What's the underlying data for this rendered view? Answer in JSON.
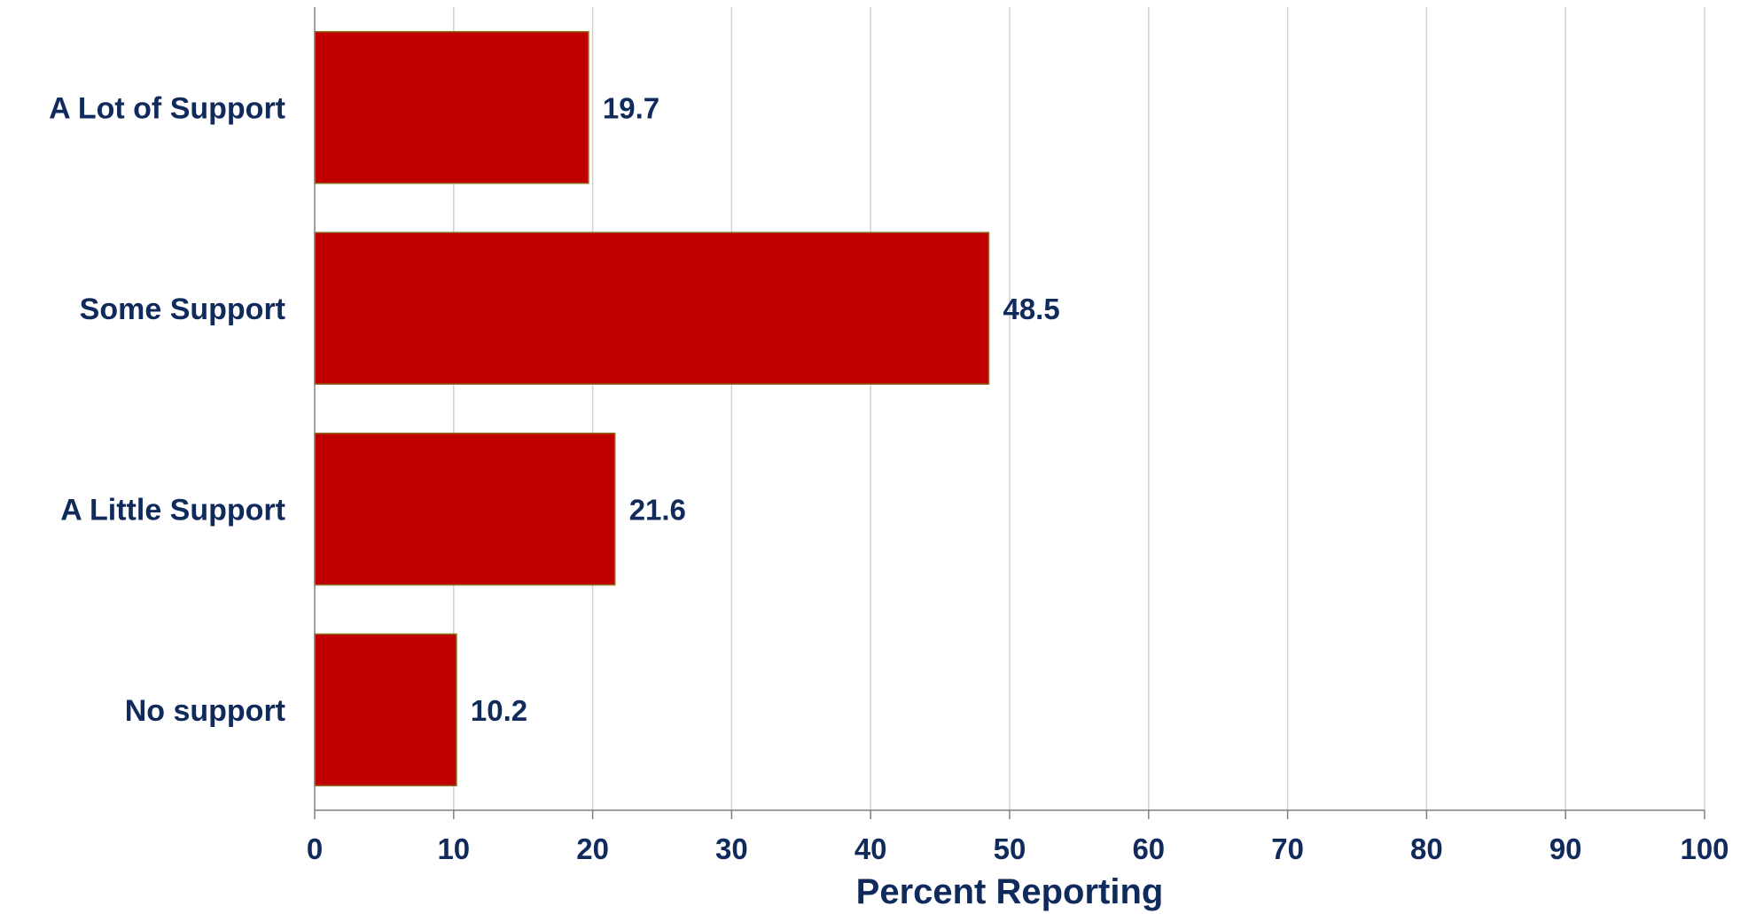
{
  "chart_data": {
    "type": "bar",
    "orientation": "horizontal",
    "categories": [
      "A Lot of Support",
      "Some Support",
      "A Little Support",
      "No support"
    ],
    "values": [
      19.7,
      48.5,
      21.6,
      10.2
    ],
    "data_labels": [
      "19.7",
      "48.5",
      "21.6",
      "10.2"
    ],
    "xlabel": "Percent Reporting",
    "ylabel": "",
    "xlim": [
      0,
      100
    ],
    "xticks": [
      0,
      10,
      20,
      30,
      40,
      50,
      60,
      70,
      80,
      90,
      100
    ],
    "xtick_labels": [
      "0",
      "10",
      "20",
      "30",
      "40",
      "50",
      "60",
      "70",
      "80",
      "90",
      "100"
    ],
    "grid": "vertical",
    "legend": "none"
  },
  "colors": {
    "bar_fill": "#c00000",
    "bar_edge": "#8a6d1a",
    "text": "#102a5c",
    "grid": "#d0d0d0",
    "axis": "#808080"
  }
}
